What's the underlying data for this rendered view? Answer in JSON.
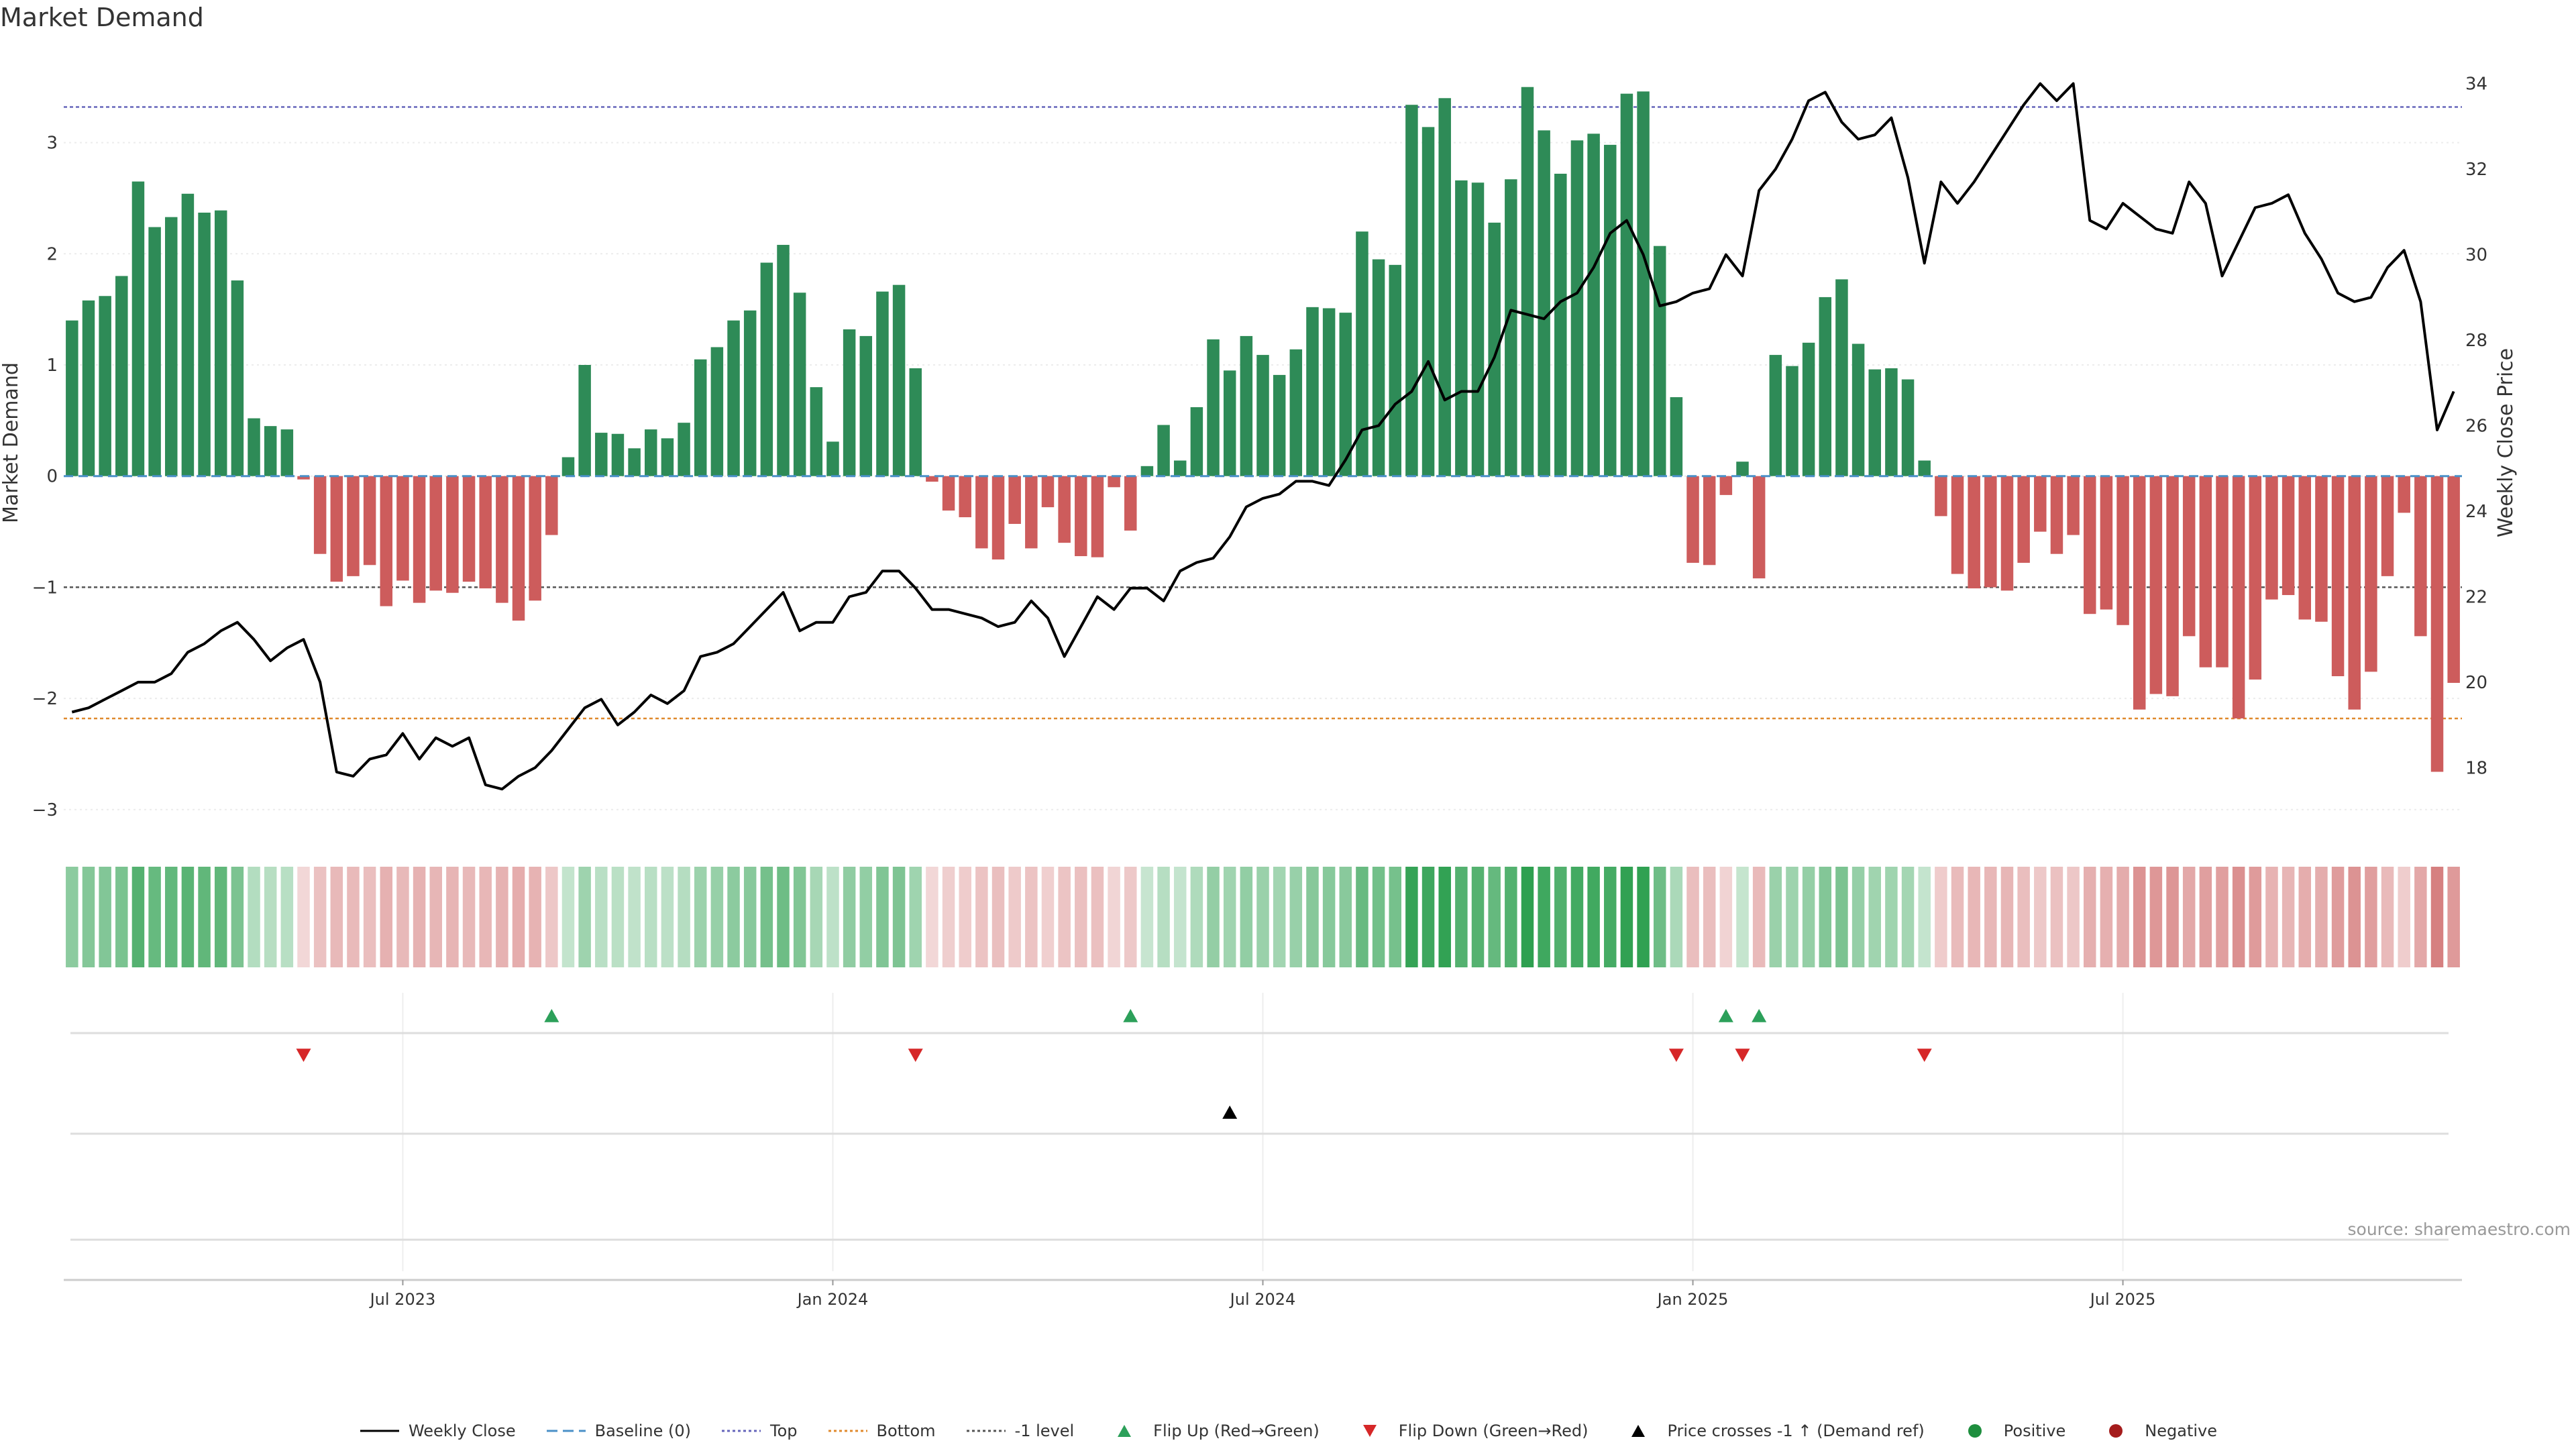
{
  "title": "Market Demand",
  "source_text": "source: sharemaestro.com",
  "chart_data": {
    "type": "bar",
    "left_axis": {
      "label": "Market Demand",
      "ylim": [
        -3.2,
        3.8
      ],
      "ticks": [
        -3,
        -2,
        -1,
        0,
        1,
        2,
        3
      ]
    },
    "right_axis": {
      "label": "Weekly Close Price",
      "ylim": [
        16.5,
        34.7
      ],
      "ticks": [
        18,
        20,
        22,
        24,
        26,
        28,
        30,
        32,
        34
      ]
    },
    "x_tick_labels": [
      "Jul 2023",
      "Jan 2024",
      "Jul 2024",
      "Jan 2025",
      "Jul 2025"
    ],
    "x_tick_index": [
      20,
      46,
      72,
      98,
      124
    ],
    "reference_lines": {
      "top": 3.32,
      "bottom": -2.18,
      "neg_one": -1.0,
      "baseline": 0
    },
    "demand": [
      1.4,
      1.58,
      1.62,
      1.8,
      2.65,
      2.24,
      2.33,
      2.54,
      2.37,
      2.39,
      1.76,
      0.52,
      0.45,
      0.42,
      -0.03,
      -0.7,
      -0.95,
      -0.9,
      -0.8,
      -1.17,
      -0.94,
      -1.14,
      -1.03,
      -1.05,
      -0.95,
      -1.01,
      -1.14,
      -1.3,
      -1.12,
      -0.53,
      0.17,
      1.0,
      0.39,
      0.38,
      0.25,
      0.42,
      0.34,
      0.48,
      1.05,
      1.16,
      1.4,
      1.49,
      1.92,
      2.08,
      1.65,
      0.8,
      0.31,
      1.32,
      1.26,
      1.66,
      1.72,
      0.97,
      -0.05,
      -0.31,
      -0.37,
      -0.65,
      -0.75,
      -0.43,
      -0.65,
      -0.28,
      -0.6,
      -0.72,
      -0.73,
      -0.1,
      -0.49,
      0.09,
      0.46,
      0.14,
      0.62,
      1.23,
      0.95,
      1.26,
      1.09,
      0.91,
      1.14,
      1.52,
      1.51,
      1.47,
      2.2,
      1.95,
      1.9,
      3.34,
      3.14,
      3.4,
      2.66,
      2.64,
      2.28,
      2.67,
      3.5,
      3.11,
      2.72,
      3.02,
      3.08,
      2.98,
      3.44,
      3.46,
      2.07,
      0.71,
      -0.78,
      -0.8,
      -0.17,
      0.13,
      -0.92,
      1.09,
      0.99,
      1.2,
      1.61,
      1.77,
      1.19,
      0.96,
      0.97,
      0.87,
      0.14,
      -0.36,
      -0.88,
      -1.01,
      -1.0,
      -1.03,
      -0.78,
      -0.5,
      -0.7,
      -0.53,
      -1.24,
      -1.2,
      -1.34,
      -2.1,
      -1.96,
      -1.98,
      -1.44,
      -1.72,
      -1.72,
      -2.18,
      -1.83,
      -1.11,
      -1.07,
      -1.29,
      -1.31,
      -1.8,
      -2.1,
      -1.76,
      -0.9,
      -0.33,
      -1.44,
      -2.66,
      -1.86
    ],
    "price": [
      19.3,
      19.4,
      19.6,
      19.8,
      20.0,
      20.0,
      20.2,
      20.7,
      20.9,
      21.2,
      21.4,
      21.0,
      20.5,
      20.8,
      21.0,
      20.0,
      17.9,
      17.8,
      18.2,
      18.3,
      18.8,
      18.2,
      18.7,
      18.5,
      18.7,
      17.6,
      17.5,
      17.8,
      18.0,
      18.4,
      18.9,
      19.4,
      19.6,
      19.0,
      19.3,
      19.7,
      19.5,
      19.8,
      20.6,
      20.7,
      20.9,
      21.3,
      21.7,
      22.1,
      21.2,
      21.4,
      21.4,
      22.0,
      22.1,
      22.6,
      22.6,
      22.2,
      21.7,
      21.7,
      21.6,
      21.5,
      21.3,
      21.4,
      21.9,
      21.5,
      20.6,
      21.3,
      22.0,
      21.7,
      22.2,
      22.2,
      21.9,
      22.6,
      22.8,
      22.9,
      23.4,
      24.1,
      24.3,
      24.4,
      24.7,
      24.7,
      24.6,
      25.2,
      25.9,
      26.0,
      26.5,
      26.8,
      27.5,
      26.6,
      26.8,
      26.8,
      27.6,
      28.7,
      28.6,
      28.5,
      28.9,
      29.1,
      29.7,
      30.5,
      30.8,
      30.0,
      28.8,
      28.9,
      29.1,
      29.2,
      30.0,
      29.5,
      31.5,
      32.0,
      32.7,
      33.6,
      33.8,
      33.1,
      32.7,
      32.8,
      33.2,
      31.8,
      29.8,
      31.7,
      31.2,
      31.7,
      32.3,
      32.9,
      33.5,
      34.0,
      33.6,
      34.0,
      30.8,
      30.6,
      31.2,
      30.9,
      30.6,
      30.5,
      31.7,
      31.2,
      29.5,
      30.3,
      31.1,
      31.2,
      31.4,
      30.5,
      29.9,
      29.1,
      28.9,
      29.0,
      29.7,
      30.1,
      28.9,
      25.9,
      26.8
    ],
    "flip_up_index": [
      29,
      64,
      100,
      102
    ],
    "flip_down_index": [
      14,
      51,
      97,
      101,
      112
    ],
    "price_cross_index": [
      70
    ],
    "colors": {
      "positive": "#2e8b57",
      "negative": "#cd5c5c",
      "price_line": "#000000",
      "baseline": "#4a90c8",
      "top": "#6666bb",
      "bottom": "#e08a2e",
      "neg_one": "#555555",
      "flip_up": "#2ca05a",
      "flip_down": "#d62728",
      "cross": "#000000",
      "positive_dot": "#1e8e3e",
      "negative_dot": "#a51c1c"
    }
  },
  "legend": [
    {
      "label": "Weekly Close",
      "symbol": "line",
      "color": "#000000"
    },
    {
      "label": "Baseline (0)",
      "symbol": "dash",
      "color": "#4a90c8"
    },
    {
      "label": "Top",
      "symbol": "dot",
      "color": "#6666bb"
    },
    {
      "label": "Bottom",
      "symbol": "dot",
      "color": "#e08a2e"
    },
    {
      "label": "-1 level",
      "symbol": "dot",
      "color": "#555555"
    },
    {
      "label": "Flip Up (Red→Green)",
      "symbol": "tri-up",
      "color": "#2ca05a"
    },
    {
      "label": "Flip Down (Green→Red)",
      "symbol": "tri-down",
      "color": "#d62728"
    },
    {
      "label": "Price crosses -1 ↑ (Demand ref)",
      "symbol": "tri-up",
      "color": "#000000"
    },
    {
      "label": "Positive",
      "symbol": "circle",
      "color": "#1e8e3e"
    },
    {
      "label": "Negative",
      "symbol": "circle",
      "color": "#a51c1c"
    }
  ]
}
